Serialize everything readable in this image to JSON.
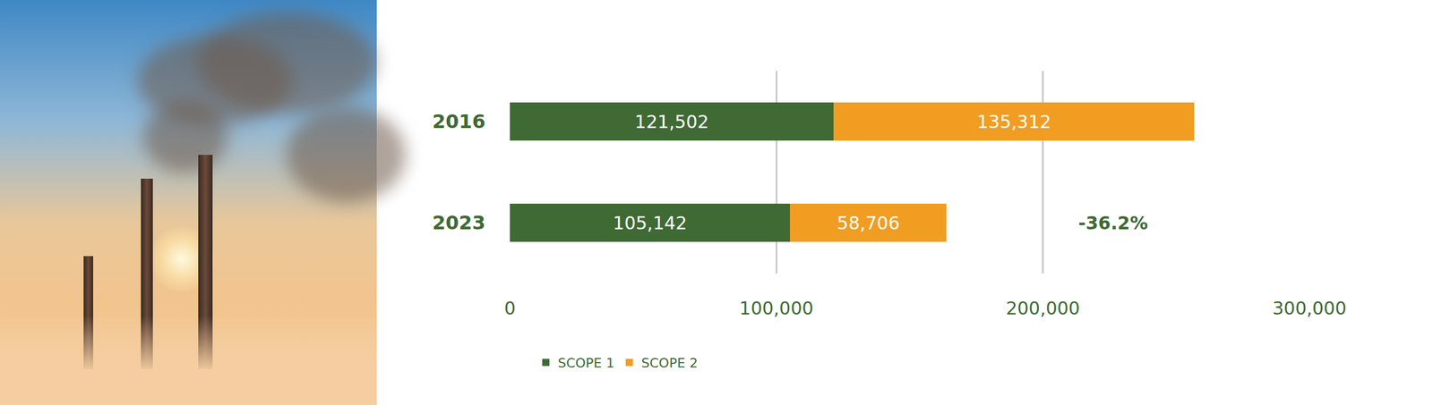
{
  "chart_data": {
    "type": "bar",
    "orientation": "horizontal",
    "stacked": true,
    "data_labels": true,
    "categories": [
      "2016",
      "2023"
    ],
    "series": [
      {
        "name": "SCOPE 1",
        "color": "#3f6a34",
        "values": [
          121502,
          105142
        ],
        "value_labels": [
          "121,502",
          "105,142"
        ]
      },
      {
        "name": "SCOPE 2",
        "color": "#f09d22",
        "values": [
          135312,
          58706
        ],
        "value_labels": [
          "135,312",
          "58,706"
        ]
      }
    ],
    "xlim": [
      0,
      300000
    ],
    "xticks": [
      0,
      {
        "value": 100000,
        "label": "100,000"
      },
      {
        "value": 200000,
        "label": "200,000"
      },
      {
        "value": 300000,
        "label": "300,000"
      }
    ],
    "grid": true,
    "legend": "bottom",
    "annotation": "-36.2%"
  }
}
